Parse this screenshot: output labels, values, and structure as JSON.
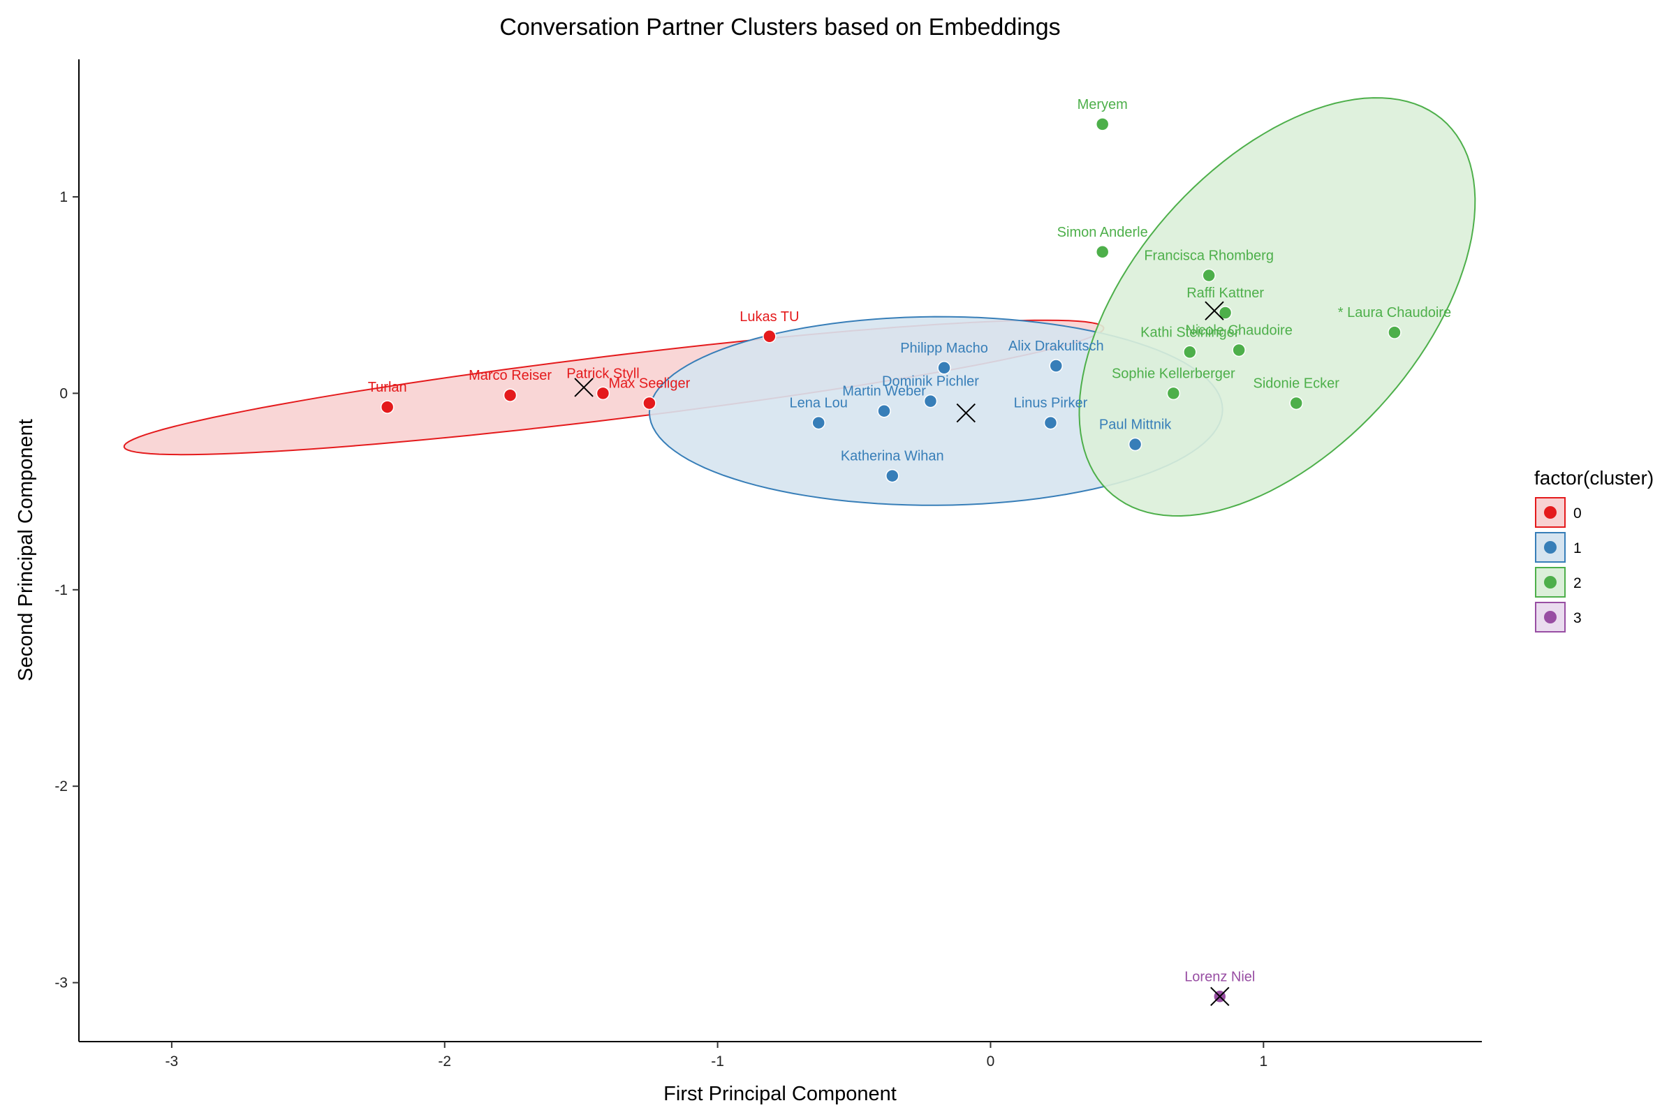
{
  "chart_data": {
    "type": "scatter",
    "title": "Conversation Partner Clusters based on Embeddings",
    "xlabel": "First Principal Component",
    "ylabel": "Second Principal Component",
    "xlim": [
      -3.34,
      1.8
    ],
    "ylim": [
      -3.3,
      1.7
    ],
    "xticks": [
      -3,
      -2,
      -1,
      0,
      1
    ],
    "yticks": [
      -3,
      -2,
      -1,
      0,
      1
    ],
    "xtick_labels": [
      "-3",
      "-2",
      "-1",
      "0",
      "1"
    ],
    "ytick_labels": [
      "-3",
      "-2",
      "-1",
      "0",
      "1"
    ],
    "grid": false,
    "legend": {
      "title": "factor(cluster)",
      "position": "right",
      "entries": [
        "0",
        "1",
        "2",
        "3"
      ]
    },
    "colors": {
      "0": "#e41a1c",
      "1": "#377eb8",
      "2": "#4daf4a",
      "3": "#984ea3"
    },
    "fill_colors": {
      "0": "#f8d1d2",
      "1": "#d6e4f0",
      "2": "#dbefd9",
      "3": "#eadcef"
    },
    "points": [
      {
        "name": "Turlan",
        "cluster": "0",
        "x": -2.21,
        "y": -0.07
      },
      {
        "name": "Marco Reiser",
        "cluster": "0",
        "x": -1.76,
        "y": -0.01
      },
      {
        "name": "Patrick Styll",
        "cluster": "0",
        "x": -1.42,
        "y": 0.0
      },
      {
        "name": "Max Seeliger",
        "cluster": "0",
        "x": -1.25,
        "y": -0.05
      },
      {
        "name": "Lukas TU",
        "cluster": "0",
        "x": -0.81,
        "y": 0.29
      },
      {
        "name": "Lena Lou",
        "cluster": "1",
        "x": -0.63,
        "y": -0.15
      },
      {
        "name": "Martin Weber",
        "cluster": "1",
        "x": -0.39,
        "y": -0.09
      },
      {
        "name": "Katherina Wihan",
        "cluster": "1",
        "x": -0.36,
        "y": -0.42
      },
      {
        "name": "Dominik Pichler",
        "cluster": "1",
        "x": -0.22,
        "y": -0.04
      },
      {
        "name": "Philipp Macho",
        "cluster": "1",
        "x": -0.17,
        "y": 0.13
      },
      {
        "name": "Alix Drakulitsch",
        "cluster": "1",
        "x": 0.24,
        "y": 0.14
      },
      {
        "name": "Linus Pirker",
        "cluster": "1",
        "x": 0.22,
        "y": -0.15
      },
      {
        "name": "Paul Mittnik",
        "cluster": "1",
        "x": 0.53,
        "y": -0.26
      },
      {
        "name": "Meryem",
        "cluster": "2",
        "x": 0.41,
        "y": 1.37
      },
      {
        "name": "Simon Anderle",
        "cluster": "2",
        "x": 0.41,
        "y": 0.72
      },
      {
        "name": "Francisca Rhomberg",
        "cluster": "2",
        "x": 0.8,
        "y": 0.6
      },
      {
        "name": "Raffi Kattner",
        "cluster": "2",
        "x": 0.86,
        "y": 0.41
      },
      {
        "name": "Kathi Steininger",
        "cluster": "2",
        "x": 0.73,
        "y": 0.21
      },
      {
        "name": "Nicole Chaudoire",
        "cluster": "2",
        "x": 0.91,
        "y": 0.22
      },
      {
        "name": "* Laura Chaudoire",
        "cluster": "2",
        "x": 1.48,
        "y": 0.31
      },
      {
        "name": "Sophie Kellerberger",
        "cluster": "2",
        "x": 0.67,
        "y": 0.0
      },
      {
        "name": "Sidonie Ecker",
        "cluster": "2",
        "x": 1.12,
        "y": -0.05
      },
      {
        "name": "Lorenz Niel",
        "cluster": "3",
        "x": 0.84,
        "y": -3.07
      }
    ],
    "centroids": [
      {
        "cluster": "0",
        "x": -1.49,
        "y": 0.03
      },
      {
        "cluster": "1",
        "x": -0.09,
        "y": -0.1
      },
      {
        "cluster": "2",
        "x": 0.82,
        "y": 0.42
      },
      {
        "cluster": "3",
        "x": 0.84,
        "y": -3.07
      }
    ],
    "ellipses": [
      {
        "cluster": "0",
        "cx": -1.38,
        "cy": 0.03,
        "rx": 1.82,
        "ry": 0.16,
        "angle_deg": 9.6
      },
      {
        "cluster": "1",
        "cx": -0.2,
        "cy": -0.09,
        "rx": 1.05,
        "ry": 0.48,
        "angle_deg": 0.5
      },
      {
        "cluster": "2",
        "cx": 1.05,
        "cy": 0.44,
        "rx": 0.58,
        "ry": 1.15,
        "angle_deg": -26
      }
    ]
  }
}
